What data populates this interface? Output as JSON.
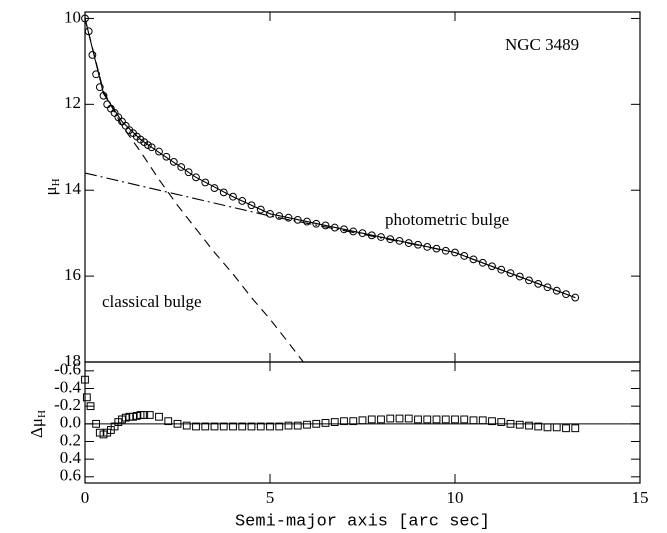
{
  "chart_data": [
    {
      "type": "scatter",
      "title": "NGC 3489",
      "ylabel": {
        "symbol": "μ",
        "sub": "H"
      },
      "xlim": [
        0,
        15
      ],
      "xticks": [
        0,
        5,
        10,
        15
      ],
      "ylim": [
        9.85,
        18
      ],
      "y_inverted": true,
      "yticks": [
        10,
        12,
        14,
        16,
        18
      ],
      "series": [
        {
          "marker": "circle",
          "color": "#000000",
          "x": [
            0,
            0.1,
            0.2,
            0.3,
            0.4,
            0.5,
            0.6,
            0.7,
            0.8,
            0.9,
            1.0,
            1.1,
            1.2,
            1.3,
            1.4,
            1.5,
            1.6,
            1.7,
            1.8,
            2.0,
            2.2,
            2.4,
            2.6,
            2.8,
            3.0,
            3.25,
            3.5,
            3.75,
            4.0,
            4.25,
            4.5,
            4.75,
            5.0,
            5.25,
            5.5,
            5.75,
            6.0,
            6.25,
            6.5,
            6.75,
            7.0,
            7.25,
            7.5,
            7.75,
            8.0,
            8.25,
            8.5,
            8.75,
            9.0,
            9.25,
            9.5,
            9.75,
            10.0,
            10.25,
            10.5,
            10.75,
            11.0,
            11.25,
            11.5,
            11.75,
            12.0,
            12.25,
            12.5,
            12.75,
            13.0,
            13.25
          ],
          "values": [
            10.0,
            10.3,
            10.85,
            11.3,
            11.6,
            11.8,
            12.0,
            12.1,
            12.2,
            12.3,
            12.4,
            12.5,
            12.6,
            12.67,
            12.75,
            12.82,
            12.88,
            12.95,
            13.0,
            13.1,
            13.22,
            13.34,
            13.46,
            13.58,
            13.7,
            13.82,
            13.95,
            14.05,
            14.15,
            14.25,
            14.35,
            14.45,
            14.55,
            14.6,
            14.64,
            14.69,
            14.73,
            14.78,
            14.82,
            14.87,
            14.91,
            14.96,
            15.0,
            15.05,
            15.09,
            15.14,
            15.18,
            15.23,
            15.27,
            15.32,
            15.36,
            15.41,
            15.45,
            15.53,
            15.61,
            15.69,
            15.77,
            15.85,
            15.93,
            16.01,
            16.1,
            16.18,
            16.26,
            16.34,
            16.42,
            16.5
          ]
        },
        {
          "line": "solid",
          "color": "#000000",
          "x": [
            0,
            0.5,
            1,
            1.5,
            2,
            3,
            4,
            5,
            7.5,
            10,
            13.25
          ],
          "values": [
            10.0,
            11.75,
            12.4,
            12.82,
            13.12,
            13.7,
            14.15,
            14.55,
            15.0,
            15.45,
            16.5
          ]
        },
        {
          "name": "classical bulge",
          "line": "dashed",
          "color": "#000000",
          "x": [
            0,
            0.5,
            1.0,
            1.5,
            2.0,
            2.5,
            3.0,
            3.5,
            4.0,
            4.5,
            5.0,
            5.5,
            5.9
          ],
          "values": [
            10.0,
            11.7,
            12.5,
            13.1,
            13.75,
            14.35,
            14.9,
            15.45,
            15.95,
            16.5,
            17.0,
            17.55,
            18.0
          ]
        },
        {
          "name": "photometric bulge",
          "line": "dashdot",
          "color": "#000000",
          "x": [
            0,
            5,
            10,
            13.25
          ],
          "values": [
            13.6,
            14.6,
            15.45,
            16.5
          ]
        }
      ]
    },
    {
      "type": "scatter",
      "xlabel": "Semi-major axis [arc sec]",
      "ylabel": {
        "symbol": "Δμ",
        "sub": "H"
      },
      "xlim": [
        0,
        15
      ],
      "xticks": [
        0,
        5,
        10,
        15
      ],
      "ylim": [
        -0.7,
        0.67
      ],
      "y_inverted": true,
      "yticks": [
        -0.6,
        -0.4,
        -0.2,
        {
          "value": 0,
          "label": "0.0"
        },
        0.2,
        0.4,
        0.6
      ],
      "reference_line": 0,
      "series": [
        {
          "marker": "square",
          "color": "#000000",
          "x": [
            0,
            0.05,
            0.15,
            0.3,
            0.4,
            0.5,
            0.6,
            0.7,
            0.8,
            0.9,
            1.0,
            1.1,
            1.2,
            1.3,
            1.4,
            1.5,
            1.6,
            1.75,
            2.0,
            2.25,
            2.5,
            2.75,
            3.0,
            3.25,
            3.5,
            3.75,
            4.0,
            4.25,
            4.5,
            4.75,
            5.0,
            5.25,
            5.5,
            5.75,
            6.0,
            6.25,
            6.5,
            6.75,
            7.0,
            7.25,
            7.5,
            7.75,
            8.0,
            8.25,
            8.5,
            8.75,
            9.0,
            9.25,
            9.5,
            9.75,
            10.0,
            10.25,
            10.5,
            10.75,
            11.0,
            11.25,
            11.5,
            11.75,
            12.0,
            12.25,
            12.5,
            12.75,
            13.0,
            13.25
          ],
          "values": [
            -0.5,
            -0.3,
            -0.2,
            0.0,
            0.1,
            0.12,
            0.1,
            0.07,
            0.03,
            -0.02,
            -0.05,
            -0.07,
            -0.08,
            -0.08,
            -0.09,
            -0.1,
            -0.1,
            -0.1,
            -0.08,
            -0.03,
            0.0,
            0.02,
            0.03,
            0.03,
            0.03,
            0.03,
            0.03,
            0.03,
            0.03,
            0.03,
            0.03,
            0.03,
            0.02,
            0.02,
            0.01,
            0.0,
            -0.01,
            -0.02,
            -0.03,
            -0.03,
            -0.04,
            -0.05,
            -0.05,
            -0.06,
            -0.06,
            -0.06,
            -0.05,
            -0.05,
            -0.05,
            -0.05,
            -0.05,
            -0.05,
            -0.04,
            -0.04,
            -0.03,
            -0.02,
            0.0,
            0.01,
            0.02,
            0.03,
            0.04,
            0.04,
            0.05,
            0.05
          ]
        }
      ]
    }
  ]
}
